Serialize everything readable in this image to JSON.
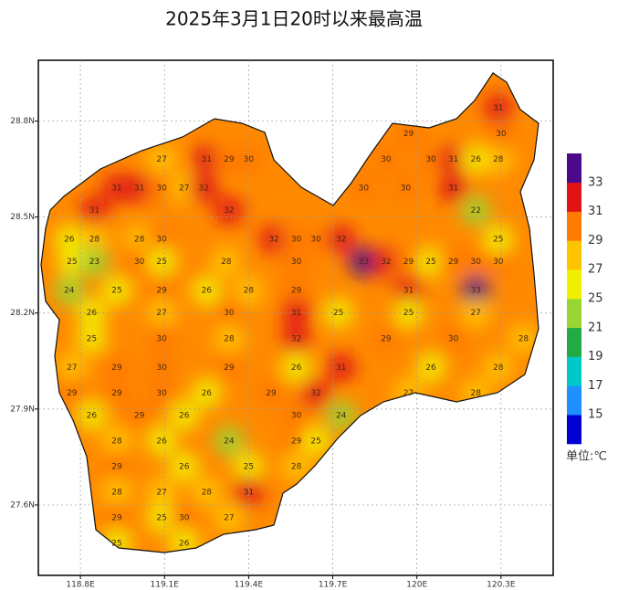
{
  "chart_data": {
    "type": "map",
    "title": "2025年3月1日20时以来最高温",
    "xlim": [
      118.65,
      120.486
    ],
    "ylim": [
      27.38,
      28.99
    ],
    "xticks": [
      {
        "value": 118.8,
        "label": "118.8E"
      },
      {
        "value": 119.1,
        "label": "119.1E"
      },
      {
        "value": 119.4,
        "label": "119.4E"
      },
      {
        "value": 119.7,
        "label": "119.7E"
      },
      {
        "value": 120.0,
        "label": "120E"
      },
      {
        "value": 120.3,
        "label": "120.3E"
      }
    ],
    "yticks": [
      {
        "value": 28.8,
        "label": "28.8N"
      },
      {
        "value": 28.5,
        "label": "28.5N"
      },
      {
        "value": 28.2,
        "label": "28.2N"
      },
      {
        "value": 27.9,
        "label": "27.9N"
      },
      {
        "value": 27.6,
        "label": "27.6N"
      }
    ],
    "grid": true,
    "legend": {
      "levels": [
        15,
        17,
        19,
        21,
        25,
        27,
        29,
        31,
        33
      ],
      "colors": [
        "#0000d0",
        "#1e90ff",
        "#00c8c8",
        "#22aa44",
        "#99d633",
        "#f0f000",
        "#ffc400",
        "#ff7a00",
        "#e01414",
        "#4b0a8c"
      ],
      "unit": "单位:℃"
    },
    "stations": {
      "lon": [
        118.93,
        119.09,
        119.25,
        119.33,
        119.4,
        119.01,
        119.09,
        119.17,
        119.24,
        118.85,
        119.33,
        118.76,
        118.85,
        119.01,
        119.09,
        119.49,
        119.57,
        119.64,
        119.73,
        118.77,
        118.85,
        119.01,
        119.09,
        119.32,
        119.57,
        119.81,
        119.89,
        119.97,
        120.05,
        120.13,
        120.21,
        120.29,
        119.97,
        120.05,
        120.13,
        120.21,
        120.29,
        120.3,
        120.29,
        119.89,
        119.81,
        119.96,
        120.13,
        120.21,
        120.29,
        118.76,
        118.93,
        119.09,
        119.25,
        119.4,
        119.57,
        119.97,
        120.21,
        118.84,
        119.09,
        119.33,
        119.57,
        119.72,
        119.97,
        120.21,
        118.84,
        119.09,
        119.33,
        119.57,
        119.89,
        120.13,
        120.38,
        118.77,
        118.93,
        119.09,
        119.33,
        119.57,
        119.73,
        120.05,
        120.29,
        118.77,
        118.93,
        119.09,
        119.25,
        119.48,
        119.64,
        119.97,
        120.21,
        118.84,
        119.01,
        119.17,
        119.57,
        119.73,
        118.93,
        119.09,
        119.33,
        119.57,
        119.64,
        118.93,
        119.17,
        119.4,
        119.57,
        118.93,
        119.09,
        119.25,
        119.4,
        118.93,
        119.09,
        119.17,
        119.33,
        118.93,
        119.17
      ],
      "lat": [
        28.59,
        28.68,
        28.68,
        28.68,
        28.68,
        28.59,
        28.59,
        28.59,
        28.59,
        28.52,
        28.52,
        28.43,
        28.43,
        28.43,
        28.43,
        28.43,
        28.43,
        28.43,
        28.43,
        28.36,
        28.36,
        28.36,
        28.36,
        28.36,
        28.36,
        28.36,
        28.36,
        28.36,
        28.36,
        28.36,
        28.36,
        28.36,
        28.76,
        28.68,
        28.68,
        28.68,
        28.68,
        28.76,
        28.84,
        28.68,
        28.59,
        28.59,
        28.59,
        28.52,
        28.43,
        28.27,
        28.27,
        28.27,
        28.27,
        28.27,
        28.27,
        28.27,
        28.27,
        28.2,
        28.2,
        28.2,
        28.2,
        28.2,
        28.2,
        28.2,
        28.12,
        28.12,
        28.12,
        28.12,
        28.12,
        28.12,
        28.12,
        28.03,
        28.03,
        28.03,
        28.03,
        28.03,
        28.03,
        28.03,
        28.03,
        27.95,
        27.95,
        27.95,
        27.95,
        27.95,
        27.95,
        27.95,
        27.95,
        27.88,
        27.88,
        27.88,
        27.88,
        27.88,
        27.8,
        27.8,
        27.8,
        27.8,
        27.8,
        27.72,
        27.72,
        27.72,
        27.72,
        27.64,
        27.64,
        27.64,
        27.64,
        27.56,
        27.56,
        27.56,
        27.56,
        27.48,
        27.48
      ],
      "values": [
        31,
        27,
        31,
        29,
        30,
        31,
        30,
        27,
        32,
        31,
        32,
        26,
        28,
        28,
        30,
        32,
        30,
        30,
        32,
        25,
        23,
        30,
        25,
        28,
        30,
        33,
        32,
        29,
        25,
        29,
        30,
        30,
        29,
        30,
        31,
        26,
        28,
        30,
        31,
        30,
        30,
        30,
        31,
        22,
        25,
        24,
        25,
        29,
        26,
        28,
        29,
        31,
        33,
        26,
        27,
        30,
        31,
        25,
        25,
        27,
        25,
        30,
        28,
        32,
        29,
        30,
        28,
        27,
        29,
        30,
        29,
        26,
        31,
        26,
        28,
        29,
        29,
        30,
        26,
        29,
        32,
        27,
        28,
        26,
        29,
        26,
        30,
        24,
        28,
        26,
        24,
        29,
        25,
        29,
        26,
        25,
        28,
        28,
        27,
        28,
        31,
        29,
        25,
        30,
        27,
        25,
        26
      ]
    }
  }
}
